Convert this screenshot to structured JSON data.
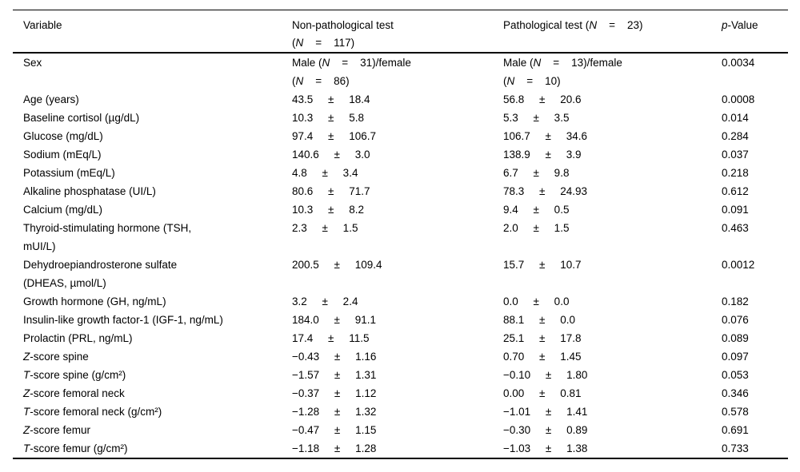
{
  "page": {
    "background": "#ffffff",
    "text_color": "#000000"
  },
  "table": {
    "columns": [
      {
        "label": "Variable"
      },
      {
        "label": [
          {
            "t": "Non-pathological test\n("
          },
          {
            "t": "N",
            "i": true
          },
          {
            "t": "    =    117)"
          }
        ]
      },
      {
        "label": [
          {
            "t": "Pathological test ("
          },
          {
            "t": "N",
            "i": true
          },
          {
            "t": "    =    23)"
          }
        ]
      },
      {
        "label": [
          {
            "t": "p",
            "i": true
          },
          {
            "t": "-Value"
          }
        ]
      }
    ],
    "rows": [
      {
        "variable": "Sex",
        "nonpath": [
          {
            "t": "Male ("
          },
          {
            "t": "N",
            "i": true
          },
          {
            "t": "    =    31)/female\n("
          },
          {
            "t": "N",
            "i": true
          },
          {
            "t": "    =    86)"
          }
        ],
        "path": [
          {
            "t": "Male ("
          },
          {
            "t": "N",
            "i": true
          },
          {
            "t": "    =    13)/female\n("
          },
          {
            "t": "N",
            "i": true
          },
          {
            "t": "    =    10)"
          }
        ],
        "pvalue": "0.0034"
      },
      {
        "variable": "Age (years)",
        "nonpath": "43.5     ±     18.4",
        "path": "56.8     ±     20.6",
        "pvalue": "0.0008"
      },
      {
        "variable": "Baseline cortisol (µg/dL)",
        "nonpath": "10.3     ±     5.8",
        "path": "5.3     ±     3.5",
        "pvalue": "0.014"
      },
      {
        "variable": "Glucose (mg/dL)",
        "nonpath": "97.4     ±     106.7",
        "path": "106.7     ±     34.6",
        "pvalue": "0.284"
      },
      {
        "variable": "Sodium (mEq/L)",
        "nonpath": "140.6     ±     3.0",
        "path": "138.9     ±     3.9",
        "pvalue": "0.037"
      },
      {
        "variable": "Potassium (mEq/L)",
        "nonpath": "4.8     ±     3.4",
        "path": "6.7     ±     9.8",
        "pvalue": "0.218"
      },
      {
        "variable": "Alkaline phosphatase (UI/L)",
        "nonpath": "80.6     ±     71.7",
        "path": "78.3     ±     24.93",
        "pvalue": "0.612"
      },
      {
        "variable": "Calcium (mg/dL)",
        "nonpath": "10.3     ±     8.2",
        "path": "9.4     ±     0.5",
        "pvalue": "0.091"
      },
      {
        "variable": "Thyroid-stimulating hormone (TSH,\nmUI/L)",
        "nonpath": "2.3     ±     1.5",
        "path": "2.0     ±     1.5",
        "pvalue": "0.463"
      },
      {
        "variable": "Dehydroepiandrosterone sulfate\n(DHEAS, µmol/L)",
        "nonpath": "200.5     ±     109.4",
        "path": "15.7     ±     10.7",
        "pvalue": "0.0012"
      },
      {
        "variable": "Growth hormone (GH, ng/mL)",
        "nonpath": "3.2     ±     2.4",
        "path": "0.0     ±     0.0",
        "pvalue": "0.182"
      },
      {
        "variable": "Insulin-like growth factor-1 (IGF-1, ng/mL)",
        "nonpath": "184.0     ±     91.1",
        "path": "88.1     ±     0.0",
        "pvalue": "0.076"
      },
      {
        "variable": "Prolactin (PRL, ng/mL)",
        "nonpath": "17.4     ±     11.5",
        "path": "25.1     ±     17.8",
        "pvalue": "0.089"
      },
      {
        "variable": [
          {
            "t": "Z",
            "i": true
          },
          {
            "t": "-score spine"
          }
        ],
        "nonpath": "−0.43     ±     1.16",
        "path": "0.70     ±     1.45",
        "pvalue": "0.097"
      },
      {
        "variable": [
          {
            "t": "T",
            "i": true
          },
          {
            "t": "-score spine (g/cm²)"
          }
        ],
        "nonpath": "−1.57     ±     1.31",
        "path": "−0.10     ±     1.80",
        "pvalue": "0.053"
      },
      {
        "variable": [
          {
            "t": "Z",
            "i": true
          },
          {
            "t": "-score femoral neck"
          }
        ],
        "nonpath": "−0.37     ±     1.12",
        "path": "0.00     ±     0.81",
        "pvalue": "0.346"
      },
      {
        "variable": [
          {
            "t": "T",
            "i": true
          },
          {
            "t": "-score femoral neck (g/cm²)"
          }
        ],
        "nonpath": "−1.28     ±     1.32",
        "path": "−1.01     ±     1.41",
        "pvalue": "0.578"
      },
      {
        "variable": [
          {
            "t": "Z",
            "i": true
          },
          {
            "t": "-score femur"
          }
        ],
        "nonpath": "−0.47     ±     1.15",
        "path": "−0.30     ±     0.89",
        "pvalue": "0.691"
      },
      {
        "variable": [
          {
            "t": "T",
            "i": true
          },
          {
            "t": "-score femur (g/cm²)"
          }
        ],
        "nonpath": "−1.18     ±     1.28",
        "path": "−1.03     ±     1.38",
        "pvalue": "0.733"
      }
    ]
  }
}
